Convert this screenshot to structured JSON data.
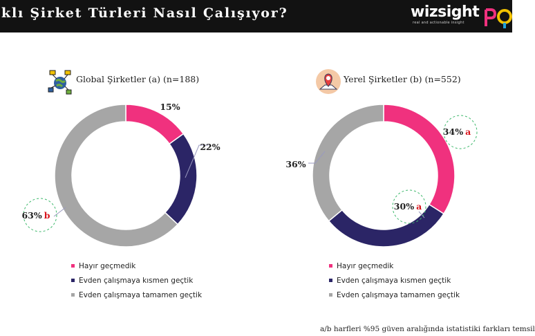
{
  "header": {
    "title": "klı Şirket Türleri Nasıl Çalışıyor?",
    "brand": "wizsight",
    "brand_tagline": "real and actionable insight"
  },
  "colors": {
    "header_bg": "#121212",
    "hayir": "#f0317e",
    "kismen": "#2b2566",
    "tamamen": "#a6a6a6",
    "significance": "#d9141c",
    "circle_dash": "#3db86b"
  },
  "panels": [
    {
      "title": "Global Şirketler (a) (n=188)",
      "icon": "global-network-icon"
    },
    {
      "title": "Yerel Şirketler (b) (n=552)",
      "icon": "location-pin-icon"
    }
  ],
  "chart_data": [
    {
      "type": "pie",
      "style": "donut",
      "title": "Global Şirketler (a) (n=188)",
      "categories": [
        "Hayır geçmedik",
        "Evden çalışmaya kısmen geçtik",
        "Evden çalışmaya tamamen geçtik"
      ],
      "values": [
        15,
        22,
        63
      ],
      "labels": [
        "15%",
        "22%",
        "63%"
      ],
      "significance": [
        "",
        "",
        "b"
      ],
      "legend_position": "bottom-left"
    },
    {
      "type": "pie",
      "style": "donut",
      "title": "Yerel Şirketler (b) (n=552)",
      "categories": [
        "Hayır geçmedik",
        "Evden çalışmaya kısmen geçtik",
        "Evden çalışmaya tamamen geçtik"
      ],
      "values": [
        34,
        30,
        36
      ],
      "labels": [
        "34%",
        "30%",
        "36%"
      ],
      "significance": [
        "a",
        "a",
        ""
      ],
      "legend_position": "bottom-left"
    }
  ],
  "legend": {
    "items": [
      "Hayır geçmedik",
      "Evden çalışmaya kısmen geçtik",
      "Evden çalışmaya tamamen geçtik"
    ]
  },
  "footnote": "a/b harfleri %95 güven aralığında istatistiki farkları temsil"
}
